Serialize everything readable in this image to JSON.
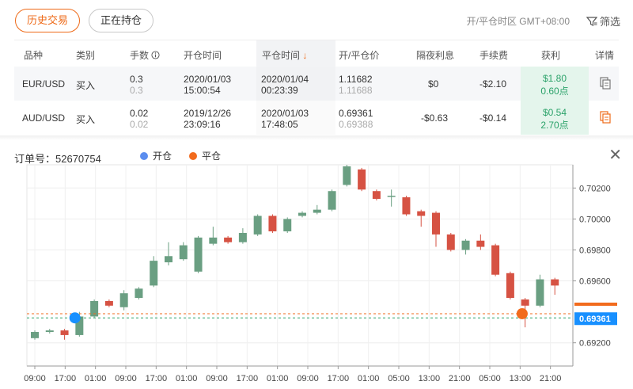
{
  "tabs": {
    "history": "历史交易",
    "open": "正在持仓"
  },
  "timezone": "开/平仓时区 GMT+08:00",
  "filter_label": "筛选",
  "table": {
    "headers": {
      "symbol": "品种",
      "type": "类别",
      "lots": "手数",
      "open_time": "开仓时间",
      "close_time": "平仓时间",
      "price": "开/平仓价",
      "swap": "隔夜利息",
      "fee": "手续费",
      "profit": "获利",
      "detail": "详情"
    },
    "rows": [
      {
        "symbol": "EUR/USD",
        "type": "买入",
        "lots": "0.3",
        "lots2": "0.3",
        "open_date": "2020/01/03",
        "open_clock": "15:00:54",
        "close_date": "2020/01/04",
        "close_clock": "00:23:39",
        "open_price": "1.11682",
        "close_price": "1.11688",
        "swap": "$0",
        "fee": "-$2.10",
        "profit": "$1.80",
        "points": "0.60点"
      },
      {
        "symbol": "AUD/USD",
        "type": "买入",
        "lots": "0.02",
        "lots2": "0.02",
        "open_date": "2019/12/26",
        "open_clock": "23:09:16",
        "close_date": "2020/01/03",
        "close_clock": "17:48:05",
        "open_price": "0.69361",
        "close_price": "0.69388",
        "swap": "-$0.63",
        "fee": "-$0.14",
        "profit": "$0.54",
        "points": "2.70点"
      }
    ]
  },
  "chart_panel": {
    "order_label": "订单号：52670754",
    "legend_open": "开仓",
    "legend_close": "平仓",
    "colors": {
      "up": "#6a9f82",
      "down": "#d65243",
      "open_marker": "#1890ff",
      "close_marker": "#f26b1d",
      "price_tag": "#1890ff"
    }
  },
  "chart_data": {
    "type": "candlestick",
    "y_ticks": [
      "0.70200",
      "0.70000",
      "0.69800",
      "0.69600",
      "0.69200"
    ],
    "y_tick_values": [
      0.702,
      0.7,
      0.698,
      0.696,
      0.692
    ],
    "ylim": [
      0.6905,
      0.7035
    ],
    "x_ticks": [
      "09:00",
      "17:00",
      "01:00",
      "09:00",
      "17:00",
      "01:00",
      "09:00",
      "17:00",
      "01:00",
      "09:00",
      "17:00",
      "01:00",
      "05:00",
      "13:00",
      "21:00",
      "05:00",
      "13:00",
      "21:00"
    ],
    "current_price": "0.69361",
    "open_price_value": 0.69361,
    "close_price_value": 0.69388,
    "candles": [
      {
        "o": 0.6923,
        "c": 0.6927,
        "h": 0.6928,
        "l": 0.6922
      },
      {
        "o": 0.6927,
        "c": 0.6928,
        "h": 0.6929,
        "l": 0.6926
      },
      {
        "o": 0.6928,
        "c": 0.6925,
        "h": 0.6929,
        "l": 0.6922
      },
      {
        "o": 0.6925,
        "c": 0.6937,
        "h": 0.694,
        "l": 0.6924
      },
      {
        "o": 0.6937,
        "c": 0.6947,
        "h": 0.6948,
        "l": 0.6936
      },
      {
        "o": 0.6947,
        "c": 0.6944,
        "h": 0.6948,
        "l": 0.6943
      },
      {
        "o": 0.6943,
        "c": 0.6952,
        "h": 0.6954,
        "l": 0.6941
      },
      {
        "o": 0.6949,
        "c": 0.6955,
        "h": 0.6956,
        "l": 0.6948
      },
      {
        "o": 0.6957,
        "c": 0.6973,
        "h": 0.6976,
        "l": 0.6956
      },
      {
        "o": 0.6972,
        "c": 0.6976,
        "h": 0.6985,
        "l": 0.697
      },
      {
        "o": 0.6974,
        "c": 0.6983,
        "h": 0.6985,
        "l": 0.6973
      },
      {
        "o": 0.6966,
        "c": 0.6988,
        "h": 0.6989,
        "l": 0.6965
      },
      {
        "o": 0.6984,
        "c": 0.6988,
        "h": 0.6995,
        "l": 0.6983
      },
      {
        "o": 0.6988,
        "c": 0.6985,
        "h": 0.6989,
        "l": 0.6984
      },
      {
        "o": 0.6985,
        "c": 0.6991,
        "h": 0.6994,
        "l": 0.6984
      },
      {
        "o": 0.699,
        "c": 0.7002,
        "h": 0.7003,
        "l": 0.6989
      },
      {
        "o": 0.7002,
        "c": 0.6992,
        "h": 0.7003,
        "l": 0.6991
      },
      {
        "o": 0.6992,
        "c": 0.7,
        "h": 0.7001,
        "l": 0.6991
      },
      {
        "o": 0.7002,
        "c": 0.7004,
        "h": 0.7005,
        "l": 0.7001
      },
      {
        "o": 0.7004,
        "c": 0.7006,
        "h": 0.7009,
        "l": 0.7003
      },
      {
        "o": 0.7006,
        "c": 0.7018,
        "h": 0.7019,
        "l": 0.7005
      },
      {
        "o": 0.7022,
        "c": 0.7034,
        "h": 0.7035,
        "l": 0.7021
      },
      {
        "o": 0.7032,
        "c": 0.7019,
        "h": 0.7033,
        "l": 0.7018
      },
      {
        "o": 0.7018,
        "c": 0.7013,
        "h": 0.7019,
        "l": 0.7012
      },
      {
        "o": 0.7015,
        "c": 0.7015,
        "h": 0.7019,
        "l": 0.7008
      },
      {
        "o": 0.7014,
        "c": 0.7003,
        "h": 0.7015,
        "l": 0.7002
      },
      {
        "o": 0.7005,
        "c": 0.7002,
        "h": 0.7006,
        "l": 0.6995
      },
      {
        "o": 0.7004,
        "c": 0.699,
        "h": 0.7005,
        "l": 0.6982
      },
      {
        "o": 0.699,
        "c": 0.698,
        "h": 0.6991,
        "l": 0.6979
      },
      {
        "o": 0.698,
        "c": 0.6986,
        "h": 0.6987,
        "l": 0.6977
      },
      {
        "o": 0.6986,
        "c": 0.6982,
        "h": 0.699,
        "l": 0.698
      },
      {
        "o": 0.6983,
        "c": 0.6964,
        "h": 0.6984,
        "l": 0.6963
      },
      {
        "o": 0.6965,
        "c": 0.6949,
        "h": 0.6966,
        "l": 0.6948
      },
      {
        "o": 0.6948,
        "c": 0.6944,
        "h": 0.6949,
        "l": 0.693
      },
      {
        "o": 0.6944,
        "c": 0.6961,
        "h": 0.6964,
        "l": 0.6943
      },
      {
        "o": 0.6961,
        "c": 0.6957,
        "h": 0.6962,
        "l": 0.6951
      }
    ]
  }
}
